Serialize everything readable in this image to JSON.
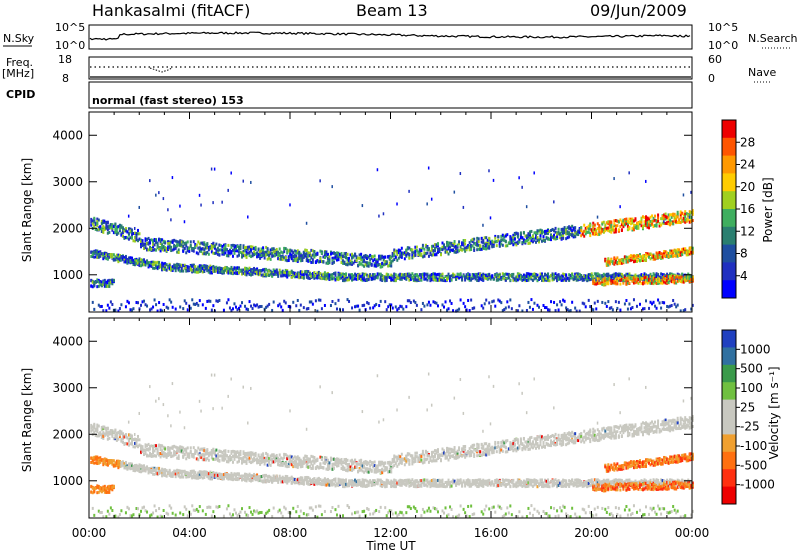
{
  "header": {
    "station": "Hankasalmi (fitACF)",
    "beam": "Beam 13",
    "date": "09/Jun/2009"
  },
  "top_panels": {
    "nsky_label": "N.Sky",
    "nsky_ticks": [
      "10^5",
      "10^0"
    ],
    "nsearch_ticks": [
      "10^5",
      "10^0"
    ],
    "nsearch_label": "N.Search",
    "freq_label": "Freq.",
    "freq_unit": "[MHz]",
    "freq_ticks": [
      "18",
      "8"
    ],
    "nave_ticks": [
      "60",
      "0"
    ],
    "nave_label": "Nave",
    "cpid_label": "CPID",
    "cpid_text": "normal (fast stereo) 153"
  },
  "chart_data": [
    {
      "type": "heatmap",
      "name": "power",
      "ylabel": "Slant Range [km]",
      "yticks": [
        "1000",
        "2000",
        "3000",
        "4000"
      ],
      "ylim": [
        200,
        4500
      ],
      "colorbar_label": "Power [dB]",
      "colorbar_ticks": [
        "28",
        "24",
        "20",
        "16",
        "12",
        "8",
        "4"
      ],
      "colorbar_colors": [
        "#ee0000",
        "#ff5500",
        "#ff9900",
        "#ffcc00",
        "#a0d020",
        "#3fae5f",
        "#2a7f70",
        "#1f4fa0",
        "#2030c0",
        "#0000ff"
      ],
      "ranges": [
        {
          "t": [
            0.0,
            2.0
          ],
          "r": [
            1700,
            2800
          ]
        },
        {
          "t": [
            2.0,
            12.0
          ],
          "r": [
            1000,
            1900
          ]
        },
        {
          "t": [
            12.0,
            20.0
          ],
          "r": [
            1400,
            2000
          ]
        },
        {
          "t": [
            20.0,
            24.0
          ],
          "r": [
            800,
            2600
          ]
        }
      ]
    },
    {
      "type": "heatmap",
      "name": "velocity",
      "ylabel": "Slant Range [km]",
      "yticks": [
        "1000",
        "2000",
        "3000",
        "4000"
      ],
      "ylim": [
        200,
        4500
      ],
      "xlabel": "Time UT",
      "xticks": [
        "00:00",
        "04:00",
        "08:00",
        "12:00",
        "16:00",
        "20:00",
        "00:00"
      ],
      "xlim": [
        0,
        24
      ],
      "colorbar_label": "Velocity [m s⁻¹]",
      "colorbar_ticks": [
        "1000",
        "500",
        "100",
        "25",
        "-25",
        "-100",
        "-500",
        "-1000"
      ],
      "colorbar_colors": [
        "#2040c0",
        "#3070a0",
        "#3a9a4a",
        "#70c040",
        "#c8c8c0",
        "#c8c8c0",
        "#f0a030",
        "#ff7010",
        "#ff3010",
        "#ee0000"
      ]
    }
  ]
}
